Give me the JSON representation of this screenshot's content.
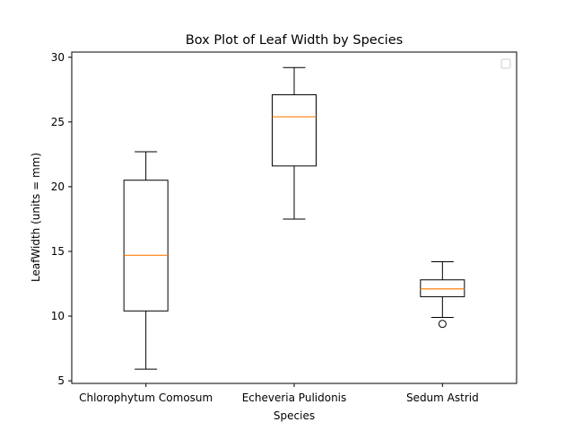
{
  "chart_data": {
    "type": "box",
    "title": "Box Plot of Leaf Width by Species",
    "xlabel": "Species",
    "ylabel": "LeafWidth (units = mm)",
    "ylim": [
      4.8,
      30.4
    ],
    "yticks": [
      5,
      10,
      15,
      20,
      25,
      30
    ],
    "categories": [
      "Chlorophytum Comosum",
      "Echeveria Pulidonis",
      "Sedum Astrid"
    ],
    "boxes": [
      {
        "category": "Chlorophytum Comosum",
        "whisker_low": 5.9,
        "q1": 10.4,
        "median": 14.7,
        "q3": 20.5,
        "whisker_high": 22.7,
        "outliers": []
      },
      {
        "category": "Echeveria Pulidonis",
        "whisker_low": 17.5,
        "q1": 21.6,
        "median": 25.4,
        "q3": 27.1,
        "whisker_high": 29.2,
        "outliers": []
      },
      {
        "category": "Sedum Astrid",
        "whisker_low": 9.9,
        "q1": 11.5,
        "median": 12.1,
        "q3": 12.8,
        "whisker_high": 14.2,
        "outliers": [
          9.4
        ]
      }
    ],
    "legend": {
      "placement": "top-right",
      "entries": []
    },
    "grid": false,
    "colors": {
      "box": "#000000",
      "median": "#ff7f0e",
      "axes": "#000000",
      "background": "#ffffff"
    }
  }
}
